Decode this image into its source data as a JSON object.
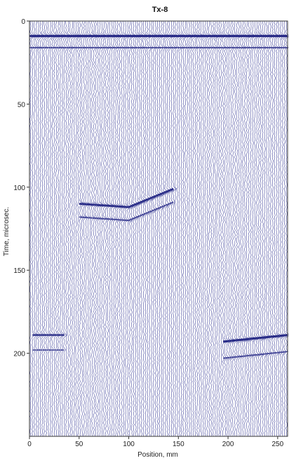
{
  "chart_data": {
    "type": "line",
    "title": "Tx-8",
    "xlabel": "Position, mm",
    "ylabel": "Time, microsec.",
    "xlim": [
      0,
      260
    ],
    "ylim": [
      0,
      250
    ],
    "y_inverted": true,
    "xticks": [
      0,
      50,
      100,
      150,
      200,
      250
    ],
    "yticks": [
      0,
      50,
      100,
      150,
      200
    ],
    "trace_spacing_mm": 2,
    "trace_color": "#2b2f8f",
    "reflections": [
      {
        "x": [
          0,
          260
        ],
        "y": [
          9,
          9
        ],
        "strength": 1.0
      },
      {
        "x": [
          0,
          260
        ],
        "y": [
          16,
          16
        ],
        "strength": 0.5
      },
      {
        "x": [
          50,
          100,
          145
        ],
        "y": [
          110,
          112,
          101
        ],
        "strength": 0.9
      },
      {
        "x": [
          50,
          100,
          145
        ],
        "y": [
          118,
          120,
          109
        ],
        "strength": 0.55
      },
      {
        "x": [
          3,
          35
        ],
        "y": [
          189,
          189
        ],
        "strength": 0.75
      },
      {
        "x": [
          3,
          35
        ],
        "y": [
          198,
          198
        ],
        "strength": 0.4
      },
      {
        "x": [
          195,
          260
        ],
        "y": [
          193,
          189
        ],
        "strength": 0.95
      },
      {
        "x": [
          195,
          260
        ],
        "y": [
          203,
          199
        ],
        "strength": 0.55
      }
    ]
  }
}
